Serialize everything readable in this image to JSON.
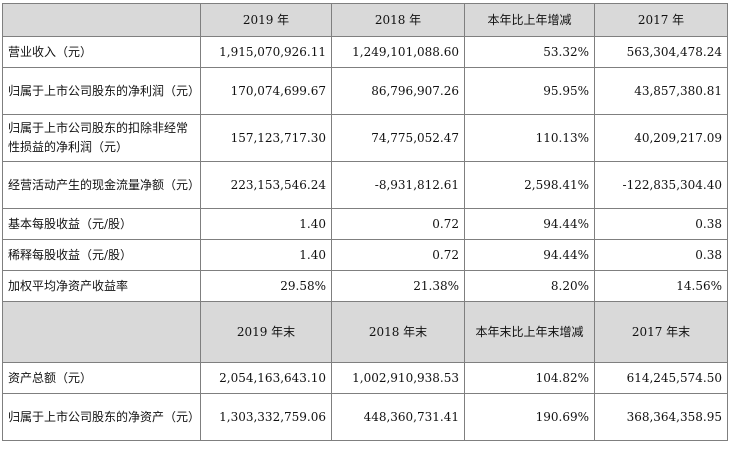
{
  "table1": {
    "headers": [
      "",
      "2019 年",
      "2018 年",
      "本年比上年增减",
      "2017 年"
    ],
    "rows": [
      {
        "label": "营业收入（元）",
        "values": [
          "1,915,070,926.11",
          "1,249,101,088.60",
          "53.32%",
          "563,304,478.24"
        ]
      },
      {
        "label": "归属于上市公司股东的净利润（元）",
        "values": [
          "170,074,699.67",
          "86,796,907.26",
          "95.95%",
          "43,857,380.81"
        ]
      },
      {
        "label": "归属于上市公司股东的扣除非经常性损益的净利润（元）",
        "values": [
          "157,123,717.30",
          "74,775,052.47",
          "110.13%",
          "40,209,217.09"
        ]
      },
      {
        "label": "经营活动产生的现金流量净额（元）",
        "values": [
          "223,153,546.24",
          "-8,931,812.61",
          "2,598.41%",
          "-122,835,304.40"
        ]
      },
      {
        "label": "基本每股收益（元/股）",
        "values": [
          "1.40",
          "0.72",
          "94.44%",
          "0.38"
        ]
      },
      {
        "label": "稀释每股收益（元/股）",
        "values": [
          "1.40",
          "0.72",
          "94.44%",
          "0.38"
        ]
      },
      {
        "label": "加权平均净资产收益率",
        "values": [
          "29.58%",
          "21.38%",
          "8.20%",
          "14.56%"
        ]
      }
    ]
  },
  "table2": {
    "headers": [
      "",
      "2019 年末",
      "2018 年末",
      "本年末比上年末增减",
      "2017 年末"
    ],
    "rows": [
      {
        "label": "资产总额（元）",
        "values": [
          "2,054,163,643.10",
          "1,002,910,938.53",
          "104.82%",
          "614,245,574.50"
        ]
      },
      {
        "label": "归属于上市公司股东的净资产（元）",
        "values": [
          "1,303,332,759.06",
          "448,360,731.41",
          "190.69%",
          "368,364,358.95"
        ]
      }
    ]
  }
}
